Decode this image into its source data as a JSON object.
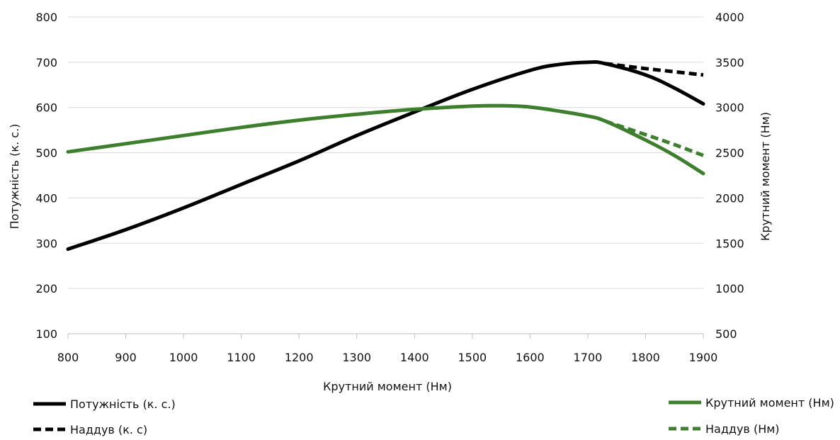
{
  "chart_data": {
    "type": "line",
    "xlabel": "Крутний момент (Нм)",
    "ylabel_left": "Потужність (к. с.)",
    "ylabel_right": "Крутний момент (Нм)",
    "x_ticks": [
      "800",
      "900",
      "1000",
      "1100",
      "1200",
      "1300",
      "1400",
      "1500",
      "1600",
      "1700",
      "1800",
      "1900"
    ],
    "y_left_ticks": [
      "100",
      "200",
      "300",
      "400",
      "500",
      "600",
      "700",
      "800"
    ],
    "y_right_ticks": [
      "500",
      "1000",
      "1500",
      "2000",
      "2500",
      "3000",
      "3500",
      "4000"
    ],
    "xlim": [
      800,
      1900
    ],
    "ylim_left": [
      100,
      800
    ],
    "ylim_right": [
      500,
      4000
    ],
    "grid": "horizontal",
    "colors": {
      "power": "#000000",
      "torque": "#3d7f2d",
      "grid": "#d9d9d9",
      "axis": "#bfbfbf"
    },
    "series": [
      {
        "name": "Потужність (к. с.)",
        "axis": "left",
        "style": "solid",
        "color": "#000000",
        "x": [
          800,
          900,
          1000,
          1100,
          1200,
          1300,
          1400,
          1500,
          1600,
          1650,
          1700,
          1730,
          1800,
          1850,
          1900
        ],
        "y": [
          287,
          330,
          378,
          430,
          482,
          538,
          590,
          640,
          682,
          695,
          700,
          697,
          672,
          643,
          608
        ]
      },
      {
        "name": "Наддув (к. с)",
        "axis": "left",
        "style": "dashed",
        "color": "#000000",
        "x": [
          1730,
          1800,
          1850,
          1900
        ],
        "y": [
          697,
          686,
          679,
          672
        ]
      },
      {
        "name": "Крутний момент (Нм)",
        "axis": "right",
        "style": "solid",
        "color": "#3d7f2d",
        "x": [
          800,
          900,
          1000,
          1100,
          1200,
          1300,
          1400,
          1500,
          1550,
          1600,
          1650,
          1700,
          1730,
          1800,
          1850,
          1900
        ],
        "y": [
          2510,
          2600,
          2690,
          2780,
          2860,
          2925,
          2980,
          3015,
          3020,
          3005,
          2960,
          2905,
          2850,
          2640,
          2470,
          2270
        ]
      },
      {
        "name": "Наддув (Нм)",
        "axis": "right",
        "style": "dashed",
        "color": "#3d7f2d",
        "x": [
          1730,
          1800,
          1850,
          1900
        ],
        "y": [
          2850,
          2700,
          2590,
          2470
        ]
      }
    ],
    "legend": {
      "left": [
        {
          "label": "Потужність (к. с.)",
          "style": "solid",
          "color": "#000000"
        },
        {
          "label": "Наддув (к. с)",
          "style": "dashed",
          "color": "#000000"
        }
      ],
      "right": [
        {
          "label": "Крутний момент (Нм)",
          "style": "solid",
          "color": "#3d7f2d"
        },
        {
          "label": "Наддув (Нм)",
          "style": "dashed",
          "color": "#3d7f2d"
        }
      ]
    }
  }
}
